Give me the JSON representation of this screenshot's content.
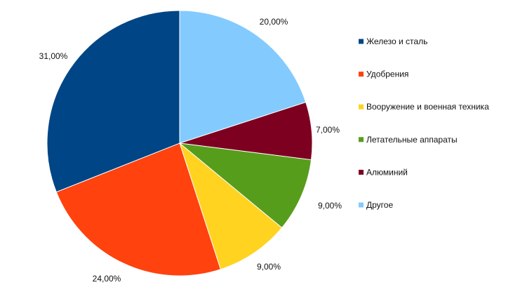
{
  "chart_data": {
    "type": "pie",
    "title": "",
    "legend_position": "right",
    "slices": [
      {
        "label": "Железо и сталь",
        "value": 31.0,
        "value_label": "31,00%",
        "color": "#004586"
      },
      {
        "label": "Удобрения",
        "value": 24.0,
        "value_label": "24,00%",
        "color": "#ff420e"
      },
      {
        "label": "Вооружение и военная техника",
        "value": 9.0,
        "value_label": "9,00%",
        "color": "#ffd320"
      },
      {
        "label": "Летательные аппараты",
        "value": 9.0,
        "value_label": "9,00%",
        "color": "#579d1c"
      },
      {
        "label": "Алюминий",
        "value": 7.0,
        "value_label": "7,00%",
        "color": "#7e0021"
      },
      {
        "label": "Другое",
        "value": 20.0,
        "value_label": "20,00%",
        "color": "#83caff"
      }
    ]
  }
}
